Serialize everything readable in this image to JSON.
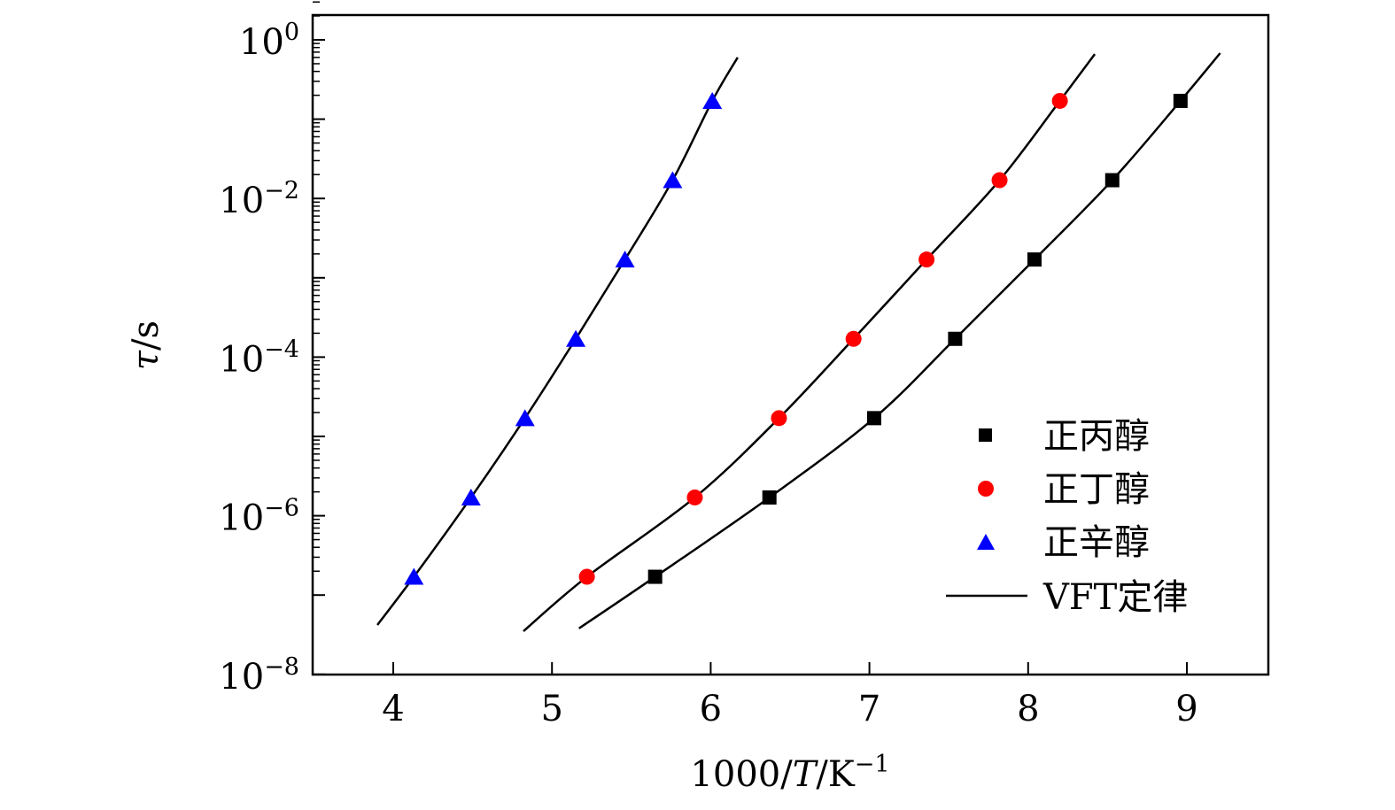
{
  "chart_data": {
    "type": "scatter",
    "title": "",
    "xlabel": {
      "prefix": "1000/",
      "italic": "T",
      "suffix": "/K",
      "sup": "−1"
    },
    "ylabel": {
      "italic": "τ",
      "suffix": "/s"
    },
    "xlim": [
      3.49,
      9.51
    ],
    "ylim": [
      1e-08,
      2
    ],
    "yscale": "log",
    "grid": false,
    "legend_position": "bottom-right",
    "x_ticks": [
      {
        "value": 4,
        "label": "4"
      },
      {
        "value": 5,
        "label": "5"
      },
      {
        "value": 6,
        "label": "6"
      },
      {
        "value": 7,
        "label": "7"
      },
      {
        "value": 8,
        "label": "8"
      },
      {
        "value": 9,
        "label": "9"
      }
    ],
    "y_ticks": [
      {
        "value": 1,
        "base": "10",
        "exp": "0"
      },
      {
        "value": 0.01,
        "base": "10",
        "exp": "−2"
      },
      {
        "value": 0.0001,
        "base": "10",
        "exp": "−4"
      },
      {
        "value": 1e-06,
        "base": "10",
        "exp": "−6"
      },
      {
        "value": 1e-08,
        "base": "10",
        "exp": "−8"
      }
    ],
    "series": [
      {
        "name": "正丙醇",
        "marker": "square",
        "color": "#000000",
        "x": [
          5.65,
          6.37,
          7.03,
          7.54,
          8.04,
          8.53,
          8.96
        ],
        "y": [
          1.7e-07,
          1.7e-06,
          1.7e-05,
          0.00017,
          0.0017,
          0.017,
          0.17
        ],
        "fit_x": [
          5.17,
          5.65,
          6.37,
          7.03,
          7.54,
          8.04,
          8.53,
          8.96,
          9.21
        ],
        "fit_y": [
          3.8e-08,
          1.7e-07,
          1.7e-06,
          1.7e-05,
          0.00017,
          0.0017,
          0.017,
          0.17,
          0.68
        ]
      },
      {
        "name": "正丁醇",
        "marker": "circle",
        "color": "#ff0000",
        "x": [
          5.22,
          5.9,
          6.43,
          6.9,
          7.36,
          7.82,
          8.2
        ],
        "y": [
          1.7e-07,
          1.7e-06,
          1.7e-05,
          0.00017,
          0.0017,
          0.017,
          0.17
        ],
        "fit_x": [
          4.82,
          5.22,
          5.9,
          6.43,
          6.9,
          7.36,
          7.82,
          8.2,
          8.42
        ],
        "fit_y": [
          3.5e-08,
          1.7e-07,
          1.7e-06,
          1.7e-05,
          0.00017,
          0.0017,
          0.017,
          0.17,
          0.66
        ]
      },
      {
        "name": "正辛醇",
        "marker": "triangle",
        "color": "#0000ff",
        "x": [
          4.13,
          4.49,
          4.83,
          5.15,
          5.46,
          5.76,
          6.01
        ],
        "y": [
          1.7e-07,
          1.7e-06,
          1.7e-05,
          0.00017,
          0.0017,
          0.017,
          0.17
        ],
        "fit_x": [
          3.9,
          4.13,
          4.49,
          4.83,
          5.15,
          5.46,
          5.76,
          6.01,
          6.17
        ],
        "fit_y": [
          4.2e-08,
          1.7e-07,
          1.7e-06,
          1.7e-05,
          0.00017,
          0.0017,
          0.017,
          0.17,
          0.6
        ]
      }
    ],
    "fit_legend": "VFT定律"
  }
}
